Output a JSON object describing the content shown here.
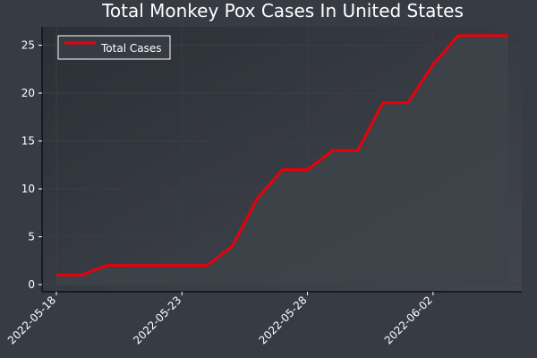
{
  "chart_data": {
    "type": "line",
    "title": "Total Monkey Pox Cases In United States",
    "xlabel": "",
    "ylabel": "",
    "x": [
      "2022-05-18",
      "2022-05-19",
      "2022-05-20",
      "2022-05-21",
      "2022-05-22",
      "2022-05-23",
      "2022-05-24",
      "2022-05-25",
      "2022-05-26",
      "2022-05-27",
      "2022-05-28",
      "2022-05-29",
      "2022-05-30",
      "2022-05-31",
      "2022-06-01",
      "2022-06-02",
      "2022-06-03",
      "2022-06-04",
      "2022-06-05"
    ],
    "x_tick_labels": [
      "2022-05-18",
      "2022-05-23",
      "2022-05-28",
      "2022-06-02"
    ],
    "series": [
      {
        "name": "Total Cases",
        "color": "#e8000b",
        "values": [
          1,
          1,
          2,
          2,
          2,
          2,
          2,
          4,
          9,
          12,
          12,
          14,
          14,
          19,
          19,
          23,
          26,
          26,
          26
        ]
      }
    ],
    "ylim": [
      0,
      26
    ],
    "y_ticks": [
      0,
      5,
      10,
      15,
      20,
      25
    ],
    "legend": "top-left",
    "grid": true,
    "colors": {
      "figure_bg": "#373c44",
      "axes_bg_top": "#2c3037",
      "axes_bg_bottom": "#40434b",
      "fill": "#3e4249",
      "axis_line": "#0f1115",
      "text": "#ffffff"
    }
  }
}
